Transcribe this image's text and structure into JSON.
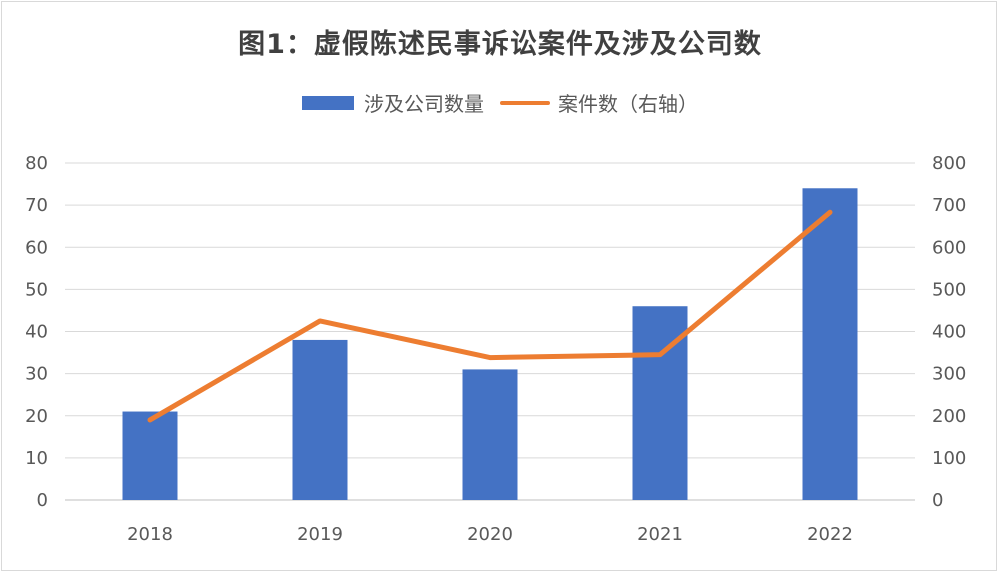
{
  "chart_data": {
    "type": "bar",
    "title": "图1：虚假陈述民事诉讼案件及涉及公司数",
    "categories": [
      "2018",
      "2019",
      "2020",
      "2021",
      "2022"
    ],
    "series": [
      {
        "name": "涉及公司数量",
        "type": "bar",
        "axis": "left",
        "color": "#4472C4",
        "values": [
          21,
          38,
          31,
          46,
          74
        ]
      },
      {
        "name": "案件数（右轴）",
        "type": "line",
        "axis": "right",
        "color": "#ED7D31",
        "values": [
          190,
          425,
          338,
          345,
          683
        ]
      }
    ],
    "y_left": {
      "lim": [
        0,
        80
      ],
      "ticks": [
        "0",
        "10",
        "20",
        "30",
        "40",
        "50",
        "60",
        "70",
        "80"
      ]
    },
    "y_right": {
      "lim": [
        0,
        800
      ],
      "ticks": [
        "0",
        "100",
        "200",
        "300",
        "400",
        "500",
        "600",
        "700",
        "800"
      ]
    },
    "grid": true,
    "legend_position": "top"
  }
}
